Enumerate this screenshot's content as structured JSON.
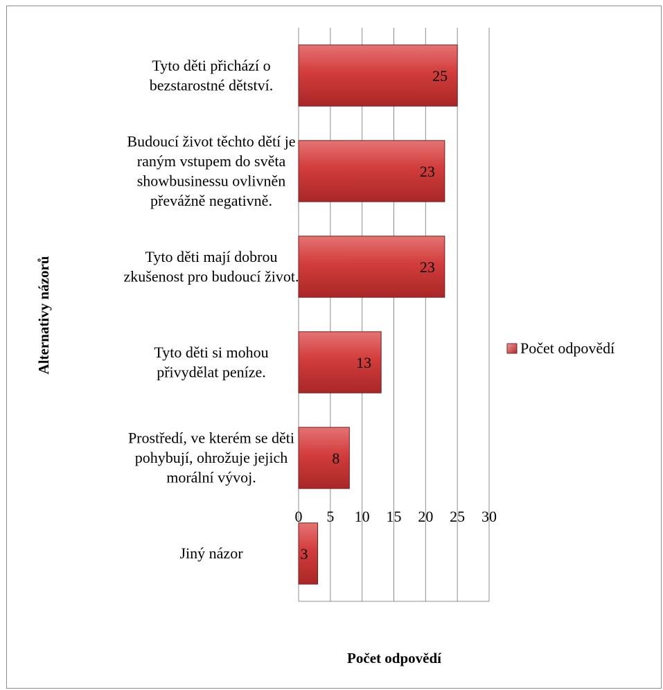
{
  "chart_data": {
    "type": "bar",
    "orientation": "horizontal",
    "categories": [
      [
        "Tyto děti přichází o",
        "bezstarostné dětství."
      ],
      [
        "Budoucí život těchto dětí je",
        "raným vstupem do světa",
        "showbusinessu ovlivněn",
        "převážně negativně."
      ],
      [
        "Tyto děti mají dobrou",
        "zkušenost pro budoucí život."
      ],
      [
        "Tyto děti si mohou",
        "přivydělat peníze."
      ],
      [
        "Prostředí, ve kterém se děti",
        "pohybují, ohrožuje jejich",
        "morální vývoj."
      ],
      [
        "Jiný názor"
      ]
    ],
    "series": [
      {
        "name": "Počet odpovědí",
        "values": [
          25,
          23,
          23,
          13,
          8,
          3
        ],
        "color": "#c0392b"
      }
    ],
    "xlim": [
      0,
      30
    ],
    "xticks": [
      "0",
      "5",
      "10",
      "15",
      "20",
      "25",
      "30"
    ],
    "xlabel": "Počet odpovědí",
    "ylabel": "Alternativy názorů",
    "grid": true,
    "legend_position": "right"
  }
}
